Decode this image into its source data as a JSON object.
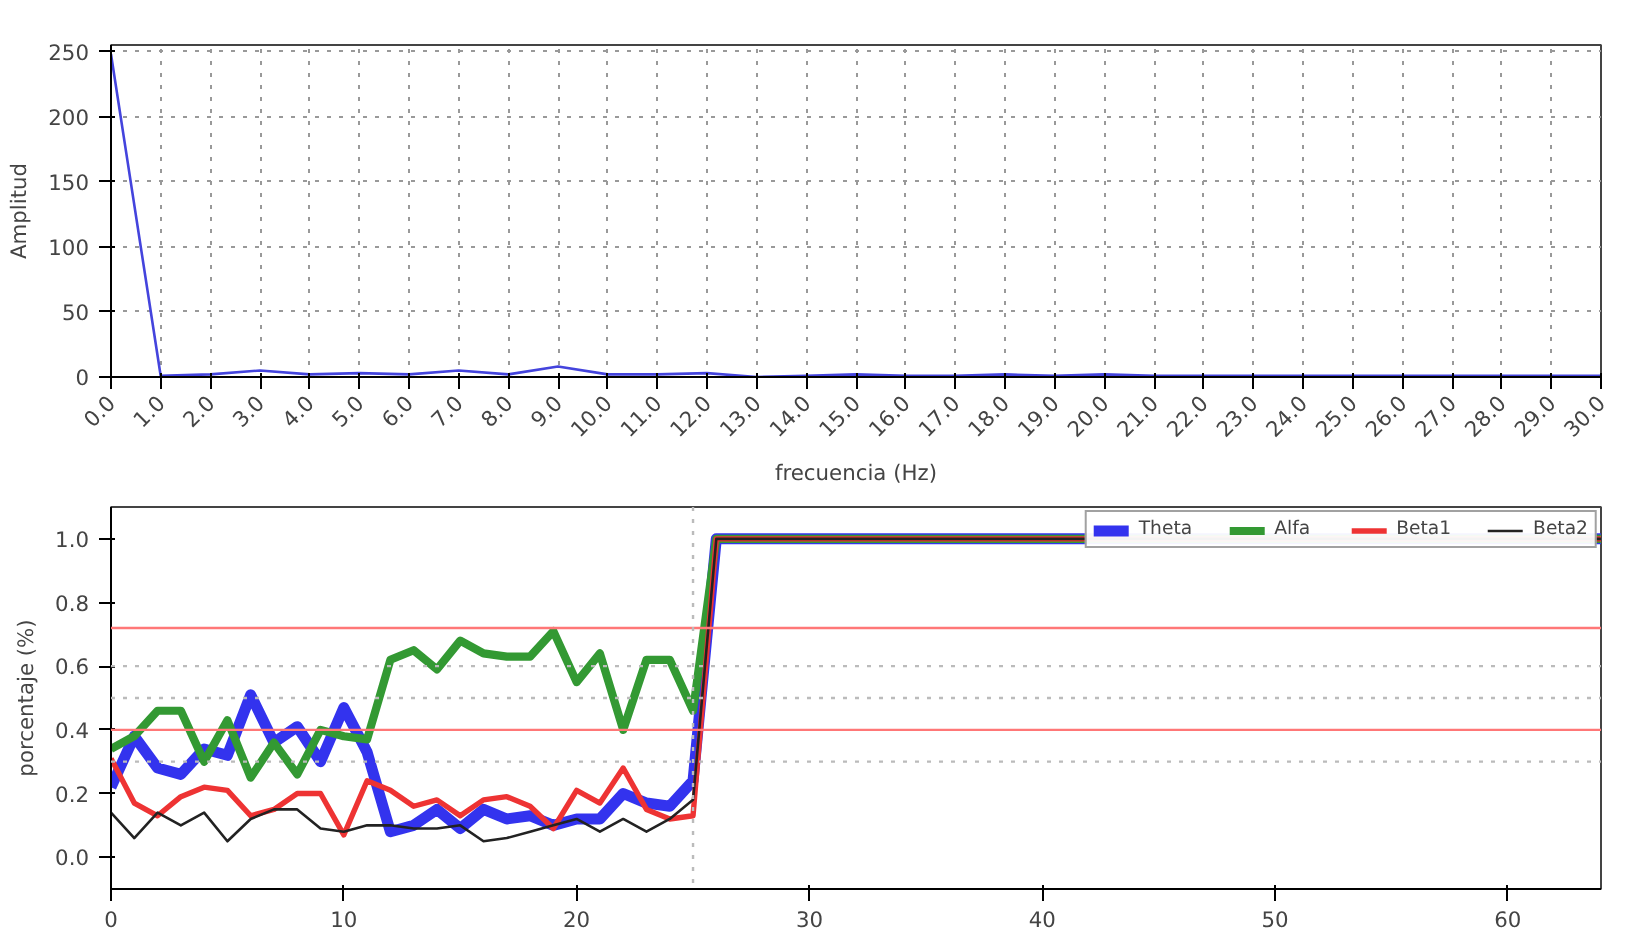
{
  "chart_data": [
    {
      "type": "line",
      "xlabel": "frecuencia (Hz)",
      "ylabel": "Amplitud",
      "x": [
        0,
        1,
        2,
        3,
        4,
        5,
        6,
        7,
        8,
        9,
        10,
        11,
        12,
        13,
        14,
        15,
        16,
        17,
        18,
        19,
        20,
        21,
        22,
        23,
        24,
        25,
        26,
        27,
        28,
        29,
        30
      ],
      "series": [
        {
          "color": "#4444dd",
          "values": [
            248,
            1,
            2,
            5,
            2,
            3,
            2,
            5,
            2,
            8,
            2,
            2,
            3,
            0,
            1,
            2,
            1,
            1,
            2,
            1,
            2,
            1,
            1,
            1,
            1,
            1,
            1,
            1,
            1,
            1,
            1
          ]
        }
      ],
      "xlim": [
        0,
        30
      ],
      "ylim": [
        0,
        255
      ],
      "xticks": [
        {
          "value": 0,
          "label": "0.0"
        },
        {
          "value": 1,
          "label": "1.0"
        },
        {
          "value": 2,
          "label": "2.0"
        },
        {
          "value": 3,
          "label": "3.0"
        },
        {
          "value": 4,
          "label": "4.0"
        },
        {
          "value": 5,
          "label": "5.0"
        },
        {
          "value": 6,
          "label": "6.0"
        },
        {
          "value": 7,
          "label": "7.0"
        },
        {
          "value": 8,
          "label": "8.0"
        },
        {
          "value": 9,
          "label": "9.0"
        },
        {
          "value": 10,
          "label": "10.0"
        },
        {
          "value": 11,
          "label": "11.0"
        },
        {
          "value": 12,
          "label": "12.0"
        },
        {
          "value": 13,
          "label": "13.0"
        },
        {
          "value": 14,
          "label": "14.0"
        },
        {
          "value": 15,
          "label": "15.0"
        },
        {
          "value": 16,
          "label": "16.0"
        },
        {
          "value": 17,
          "label": "17.0"
        },
        {
          "value": 18,
          "label": "18.0"
        },
        {
          "value": 19,
          "label": "19.0"
        },
        {
          "value": 20,
          "label": "20.0"
        },
        {
          "value": 21,
          "label": "21.0"
        },
        {
          "value": 22,
          "label": "22.0"
        },
        {
          "value": 23,
          "label": "23.0"
        },
        {
          "value": 24,
          "label": "24.0"
        },
        {
          "value": 25,
          "label": "25.0"
        },
        {
          "value": 26,
          "label": "26.0"
        },
        {
          "value": 27,
          "label": "27.0"
        },
        {
          "value": 28,
          "label": "28.0"
        },
        {
          "value": 29,
          "label": "29.0"
        },
        {
          "value": 30,
          "label": "30.0"
        }
      ],
      "yticks": [
        0,
        50,
        100,
        150,
        200,
        250
      ],
      "grid": true,
      "line_style": "solid"
    },
    {
      "type": "line",
      "ylabel": "porcentaje (%)",
      "legend": "top right",
      "grid": false,
      "series": [
        {
          "name": "Theta",
          "color": "#3333ee",
          "x": [
            0,
            1,
            2,
            3,
            4,
            5,
            6,
            7,
            8,
            9,
            10,
            11,
            12,
            13,
            14,
            15,
            16,
            17,
            18,
            19,
            20,
            21,
            22,
            23,
            24,
            25,
            26,
            64
          ],
          "values": [
            0.22,
            0.38,
            0.28,
            0.26,
            0.34,
            0.32,
            0.51,
            0.36,
            0.41,
            0.3,
            0.47,
            0.33,
            0.08,
            0.1,
            0.15,
            0.09,
            0.15,
            0.12,
            0.13,
            0.1,
            0.12,
            0.12,
            0.2,
            0.17,
            0.16,
            0.24,
            1.0,
            1.0
          ]
        },
        {
          "name": "Alfa",
          "color": "#339933",
          "x": [
            0,
            1,
            2,
            3,
            4,
            5,
            6,
            7,
            8,
            9,
            10,
            11,
            12,
            13,
            14,
            15,
            16,
            17,
            18,
            19,
            20,
            21,
            22,
            23,
            24,
            25,
            26,
            64
          ],
          "values": [
            0.34,
            0.38,
            0.46,
            0.46,
            0.3,
            0.43,
            0.25,
            0.36,
            0.26,
            0.4,
            0.38,
            0.37,
            0.62,
            0.65,
            0.59,
            0.68,
            0.64,
            0.63,
            0.63,
            0.71,
            0.55,
            0.64,
            0.4,
            0.62,
            0.62,
            0.46,
            1.0,
            1.0
          ]
        },
        {
          "name": "Beta1",
          "color": "#ee3333",
          "x": [
            0,
            1,
            2,
            3,
            4,
            5,
            6,
            7,
            8,
            9,
            10,
            11,
            12,
            13,
            14,
            15,
            16,
            17,
            18,
            19,
            20,
            21,
            22,
            23,
            24,
            25,
            26,
            64
          ],
          "values": [
            0.31,
            0.17,
            0.13,
            0.19,
            0.22,
            0.21,
            0.13,
            0.15,
            0.2,
            0.2,
            0.07,
            0.24,
            0.21,
            0.16,
            0.18,
            0.13,
            0.18,
            0.19,
            0.16,
            0.09,
            0.21,
            0.17,
            0.28,
            0.15,
            0.12,
            0.13,
            1.0,
            1.0
          ]
        },
        {
          "name": "Beta2",
          "color": "#222222",
          "x": [
            0,
            1,
            2,
            3,
            4,
            5,
            6,
            7,
            8,
            9,
            10,
            11,
            12,
            13,
            14,
            15,
            16,
            17,
            18,
            19,
            20,
            21,
            22,
            23,
            24,
            25,
            26,
            64
          ],
          "values": [
            0.14,
            0.06,
            0.14,
            0.1,
            0.14,
            0.05,
            0.12,
            0.15,
            0.15,
            0.09,
            0.08,
            0.1,
            0.1,
            0.09,
            0.09,
            0.1,
            0.05,
            0.06,
            0.08,
            0.1,
            0.12,
            0.08,
            0.12,
            0.08,
            0.12,
            0.18,
            1.0,
            1.0
          ]
        }
      ],
      "xlim": [
        0,
        64
      ],
      "ylim": [
        -0.1,
        1.1
      ],
      "xticks": [
        0,
        10,
        20,
        30,
        40,
        50,
        60
      ],
      "yticks": [
        {
          "value": 0,
          "label": "0.0"
        },
        {
          "value": 0.2,
          "label": "0.2"
        },
        {
          "value": 0.4,
          "label": "0.4"
        },
        {
          "value": 0.6,
          "label": "0.6"
        },
        {
          "value": 0.8,
          "label": "0.8"
        },
        {
          "value": 1.0,
          "label": "1.0"
        }
      ],
      "ref_lines": [
        {
          "axis": "y",
          "value": 0.72,
          "color": "#ff7777",
          "line_style": "solid"
        },
        {
          "axis": "y",
          "value": 0.4,
          "color": "#ff7777",
          "line_style": "solid"
        },
        {
          "axis": "y",
          "value": 0.6,
          "color": "#bbbbbb",
          "line_style": "dotted"
        },
        {
          "axis": "y",
          "value": 0.5,
          "color": "#bbbbbb",
          "line_style": "dotted"
        },
        {
          "axis": "y",
          "value": 0.3,
          "color": "#bbbbbb",
          "line_style": "dotted"
        },
        {
          "axis": "x",
          "value": 25,
          "color": "#bbbbbb",
          "line_style": "dotted"
        }
      ]
    }
  ]
}
